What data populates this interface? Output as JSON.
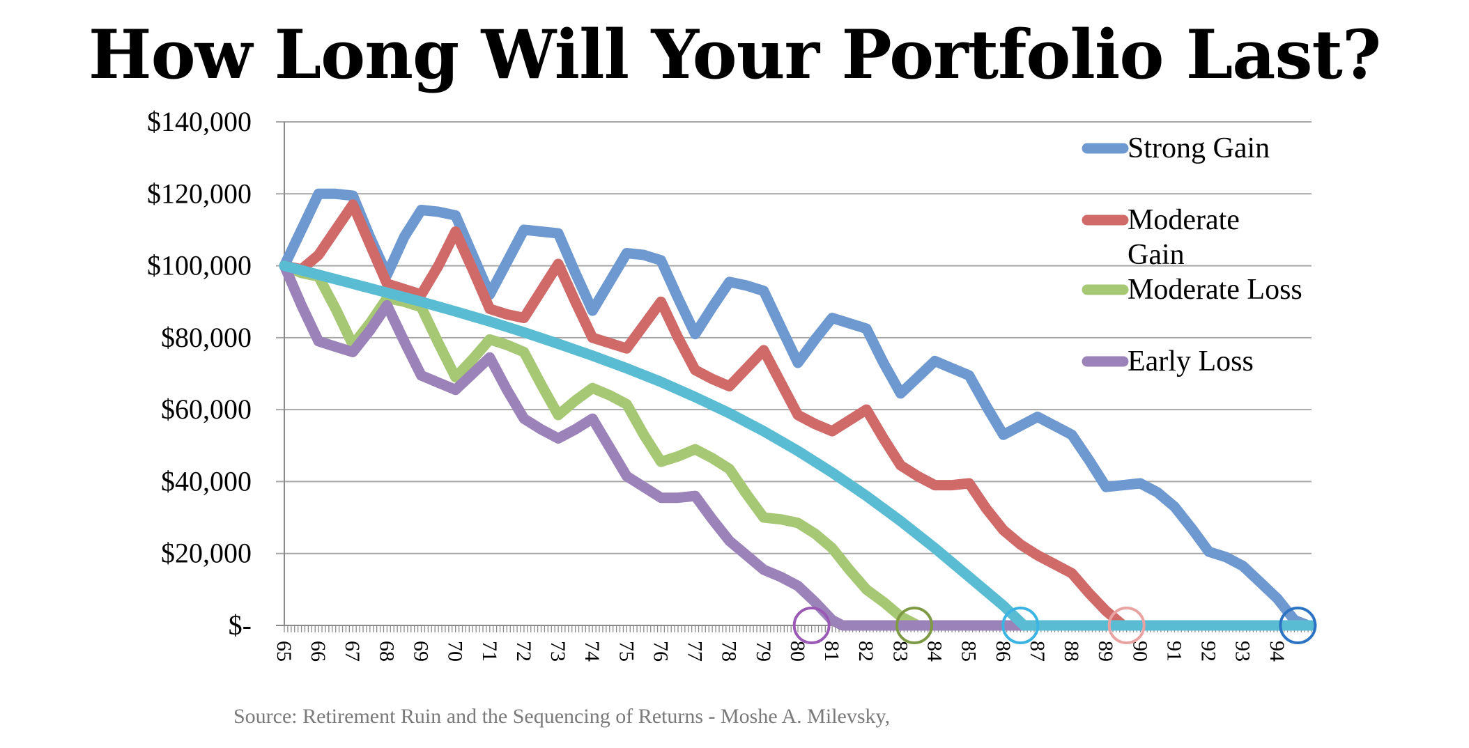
{
  "title": "How Long Will Your Portfolio Last?",
  "source": "Source: Retirement Ruin and the Sequencing of Returns - Moshe A. Milevsky,",
  "chart_data": {
    "type": "line",
    "title": "How Long Will Your Portfolio Last?",
    "xlabel": "",
    "ylabel": "",
    "ylim": [
      0,
      140000
    ],
    "yticks": [
      {
        "value": 140000,
        "label": "$140,000"
      },
      {
        "value": 120000,
        "label": "$120,000"
      },
      {
        "value": 100000,
        "label": "$100,000"
      },
      {
        "value": 80000,
        "label": "$80,000"
      },
      {
        "value": 60000,
        "label": "$60,000"
      },
      {
        "value": 40000,
        "label": "$40,000"
      },
      {
        "value": 20000,
        "label": "$20,000"
      },
      {
        "value": 0,
        "label": "$-"
      }
    ],
    "xlim": [
      65,
      95
    ],
    "xticks": [
      "65",
      "66",
      "67",
      "68",
      "69",
      "70",
      "71",
      "72",
      "73",
      "74",
      "75",
      "76",
      "77",
      "78",
      "79",
      "80",
      "81",
      "82",
      "83",
      "84",
      "85",
      "86",
      "87",
      "88",
      "89",
      "90",
      "91",
      "92",
      "93",
      "94"
    ],
    "grid": "horizontal",
    "legend_position": "top-right",
    "series": [
      {
        "name": "Strong Gain",
        "color": "#6e99d0",
        "legend": true,
        "points": [
          [
            65,
            100000
          ],
          [
            65.5,
            110000
          ],
          [
            66,
            120000
          ],
          [
            66.5,
            120000
          ],
          [
            67,
            119500
          ],
          [
            67.5,
            108000
          ],
          [
            68,
            97500
          ],
          [
            68.5,
            108000
          ],
          [
            69,
            115500
          ],
          [
            69.5,
            115000
          ],
          [
            70,
            114000
          ],
          [
            70.5,
            103000
          ],
          [
            71,
            92000
          ],
          [
            71.5,
            101000
          ],
          [
            72,
            110000
          ],
          [
            72.5,
            109500
          ],
          [
            73,
            109000
          ],
          [
            73.5,
            98000
          ],
          [
            74,
            87500
          ],
          [
            74.5,
            95500
          ],
          [
            75,
            103500
          ],
          [
            75.5,
            103000
          ],
          [
            76,
            101500
          ],
          [
            76.5,
            91000
          ],
          [
            77,
            81000
          ],
          [
            77.5,
            88500
          ],
          [
            78,
            95500
          ],
          [
            78.5,
            94500
          ],
          [
            79,
            93000
          ],
          [
            79.5,
            83000
          ],
          [
            80,
            73000
          ],
          [
            80.5,
            79500
          ],
          [
            81,
            85500
          ],
          [
            81.5,
            84000
          ],
          [
            82,
            82500
          ],
          [
            82.5,
            73000
          ],
          [
            83,
            64500
          ],
          [
            83.5,
            69000
          ],
          [
            84,
            73500
          ],
          [
            84.5,
            71500
          ],
          [
            85,
            69500
          ],
          [
            85.5,
            61000
          ],
          [
            86,
            53000
          ],
          [
            86.5,
            55500
          ],
          [
            87,
            58000
          ],
          [
            87.5,
            55500
          ],
          [
            88,
            53000
          ],
          [
            88.5,
            46000
          ],
          [
            89,
            38500
          ],
          [
            89.5,
            39000
          ],
          [
            90,
            39500
          ],
          [
            90.5,
            37000
          ],
          [
            91,
            33000
          ],
          [
            91.5,
            27000
          ],
          [
            92,
            20500
          ],
          [
            92.5,
            19000
          ],
          [
            93,
            16500
          ],
          [
            93.5,
            12000
          ],
          [
            94,
            7500
          ],
          [
            94.5,
            1500
          ],
          [
            94.9,
            0
          ],
          [
            95,
            0
          ]
        ]
      },
      {
        "name": "Moderate Gain",
        "color": "#cf6a69",
        "legend": true,
        "points": [
          [
            65,
            100000
          ],
          [
            65.5,
            99000
          ],
          [
            66,
            103000
          ],
          [
            66.5,
            110000
          ],
          [
            67,
            117000
          ],
          [
            67.5,
            106000
          ],
          [
            68,
            95000
          ],
          [
            68.5,
            93500
          ],
          [
            69,
            92000
          ],
          [
            69.5,
            100000
          ],
          [
            70,
            109500
          ],
          [
            70.5,
            99000
          ],
          [
            71,
            88000
          ],
          [
            71.5,
            86500
          ],
          [
            72,
            85500
          ],
          [
            72.5,
            93000
          ],
          [
            73,
            100500
          ],
          [
            73.5,
            90000
          ],
          [
            74,
            80000
          ],
          [
            74.5,
            78500
          ],
          [
            75,
            77000
          ],
          [
            75.5,
            83500
          ],
          [
            76,
            90000
          ],
          [
            76.5,
            80000
          ],
          [
            77,
            71000
          ],
          [
            77.5,
            68500
          ],
          [
            78,
            66500
          ],
          [
            78.5,
            71500
          ],
          [
            79,
            76500
          ],
          [
            79.5,
            67500
          ],
          [
            80,
            58500
          ],
          [
            80.5,
            56000
          ],
          [
            81,
            54000
          ],
          [
            81.5,
            57000
          ],
          [
            82,
            60000
          ],
          [
            82.5,
            52000
          ],
          [
            83,
            44500
          ],
          [
            83.5,
            41500
          ],
          [
            84,
            39000
          ],
          [
            84.5,
            39000
          ],
          [
            85,
            39500
          ],
          [
            85.5,
            32500
          ],
          [
            86,
            26500
          ],
          [
            86.5,
            22500
          ],
          [
            87,
            19500
          ],
          [
            87.5,
            17000
          ],
          [
            88,
            14500
          ],
          [
            88.5,
            9000
          ],
          [
            89,
            4000
          ],
          [
            89.5,
            0
          ],
          [
            90,
            0
          ],
          [
            95,
            0
          ]
        ]
      },
      {
        "name": "Moderate Loss",
        "color": "#a6c773",
        "legend": true,
        "points": [
          [
            65,
            100000
          ],
          [
            65.5,
            98000
          ],
          [
            66,
            97000
          ],
          [
            66.5,
            88000
          ],
          [
            67,
            78000
          ],
          [
            67.5,
            84000
          ],
          [
            68,
            91000
          ],
          [
            68.5,
            90000
          ],
          [
            69,
            88500
          ],
          [
            69.5,
            78500
          ],
          [
            70,
            69000
          ],
          [
            70.5,
            74000
          ],
          [
            71,
            79500
          ],
          [
            71.5,
            78000
          ],
          [
            72,
            76000
          ],
          [
            72.5,
            67000
          ],
          [
            73,
            58500
          ],
          [
            73.5,
            62500
          ],
          [
            74,
            66000
          ],
          [
            74.5,
            64000
          ],
          [
            75,
            61500
          ],
          [
            75.5,
            53000
          ],
          [
            76,
            45500
          ],
          [
            76.5,
            47000
          ],
          [
            77,
            49000
          ],
          [
            77.5,
            46500
          ],
          [
            78,
            43500
          ],
          [
            78.5,
            36500
          ],
          [
            79,
            30000
          ],
          [
            79.5,
            29500
          ],
          [
            80,
            28500
          ],
          [
            80.5,
            25500
          ],
          [
            81,
            21500
          ],
          [
            81.5,
            15500
          ],
          [
            82,
            10000
          ],
          [
            82.5,
            6500
          ],
          [
            83,
            2500
          ],
          [
            83.5,
            0
          ],
          [
            95,
            0
          ]
        ]
      },
      {
        "name": "Early Loss",
        "color": "#9b83b9",
        "legend": true,
        "points": [
          [
            65,
            100000
          ],
          [
            65.5,
            89000
          ],
          [
            66,
            79000
          ],
          [
            66.5,
            77500
          ],
          [
            67,
            76000
          ],
          [
            67.5,
            82000
          ],
          [
            68,
            89000
          ],
          [
            68.5,
            79000
          ],
          [
            69,
            69500
          ],
          [
            69.5,
            67500
          ],
          [
            70,
            65500
          ],
          [
            70.5,
            70000
          ],
          [
            71,
            74500
          ],
          [
            71.5,
            65500
          ],
          [
            72,
            57500
          ],
          [
            72.5,
            54500
          ],
          [
            73,
            52000
          ],
          [
            73.5,
            54500
          ],
          [
            74,
            57500
          ],
          [
            74.5,
            49500
          ],
          [
            75,
            41500
          ],
          [
            75.5,
            38500
          ],
          [
            76,
            35500
          ],
          [
            76.5,
            35500
          ],
          [
            77,
            36000
          ],
          [
            77.5,
            29500
          ],
          [
            78,
            23500
          ],
          [
            78.5,
            19500
          ],
          [
            79,
            15500
          ],
          [
            79.5,
            13500
          ],
          [
            80,
            11000
          ],
          [
            80.5,
            6500
          ],
          [
            81,
            1500
          ],
          [
            81.3,
            0
          ],
          [
            95,
            0
          ]
        ]
      },
      {
        "name": "",
        "color": "#59bcd3",
        "legend": false,
        "points": [
          [
            65,
            100000
          ],
          [
            66,
            97500
          ],
          [
            67,
            95000
          ],
          [
            68,
            92500
          ],
          [
            69,
            90000
          ],
          [
            70,
            87300
          ],
          [
            71,
            84500
          ],
          [
            72,
            81500
          ],
          [
            73,
            78300
          ],
          [
            74,
            75000
          ],
          [
            75,
            71500
          ],
          [
            76,
            67700
          ],
          [
            77,
            63500
          ],
          [
            78,
            59000
          ],
          [
            79,
            54000
          ],
          [
            80,
            48500
          ],
          [
            81,
            42500
          ],
          [
            82,
            36000
          ],
          [
            83,
            29000
          ],
          [
            84,
            21500
          ],
          [
            85,
            13500
          ],
          [
            86,
            5500
          ],
          [
            86.6,
            0
          ],
          [
            95,
            0
          ]
        ]
      }
    ],
    "markers": [
      {
        "x": 80.4,
        "color": "#9b59b6"
      },
      {
        "x": 83.4,
        "color": "#7e9a45"
      },
      {
        "x": 86.5,
        "color": "#3bb4e3"
      },
      {
        "x": 89.6,
        "color": "#e9a3a3"
      },
      {
        "x": 94.6,
        "color": "#2d73c4"
      }
    ]
  }
}
